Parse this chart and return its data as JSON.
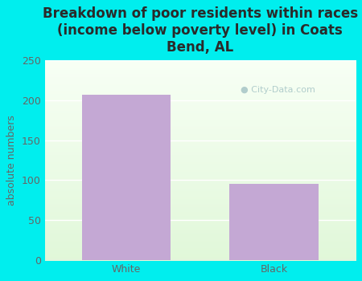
{
  "categories": [
    "White",
    "Black"
  ],
  "values": [
    207,
    95
  ],
  "bar_color": "#C4A8D4",
  "title": "Breakdown of poor residents within races\n(income below poverty level) in Coats\nBend, AL",
  "ylabel": "absolute numbers",
  "ylim": [
    0,
    250
  ],
  "yticks": [
    0,
    50,
    100,
    150,
    200,
    250
  ],
  "bg_color": "#00EEEE",
  "title_color": "#2a2a2a",
  "axis_color": "#666666",
  "watermark_text": "City-Data.com",
  "watermark_color": "#aac8c8",
  "title_fontsize": 12,
  "label_fontsize": 9,
  "tick_fontsize": 9
}
